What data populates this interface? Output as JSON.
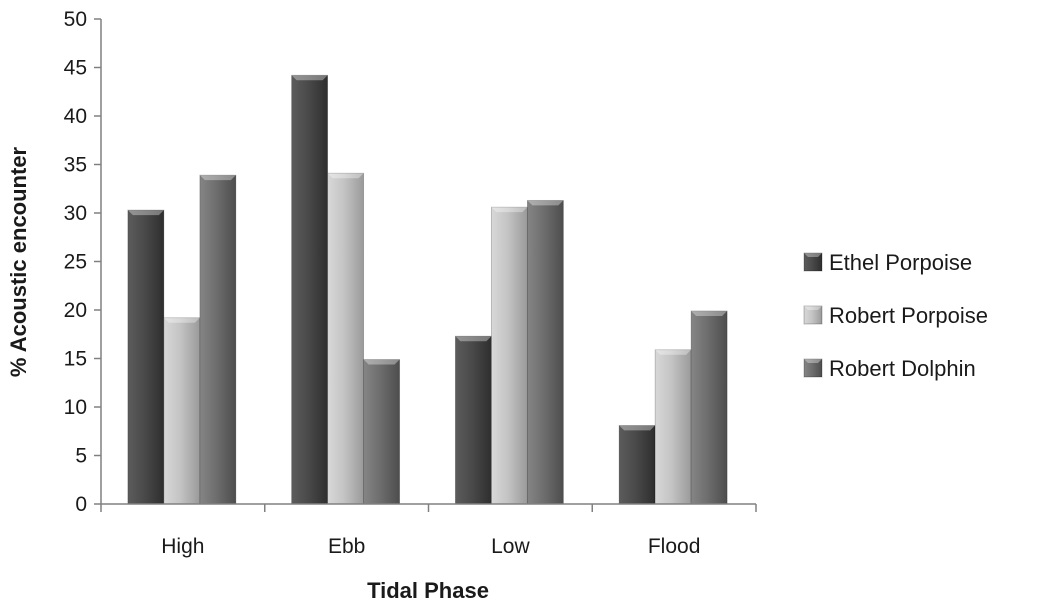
{
  "chart_data": {
    "type": "bar",
    "title": "",
    "xlabel": "Tidal Phase",
    "ylabel": "% Acoustic encounter",
    "ylim": [
      0,
      50
    ],
    "yticks": [
      0,
      5,
      10,
      15,
      20,
      25,
      30,
      35,
      40,
      45,
      50
    ],
    "categories": [
      "High",
      "Ebb",
      "Low",
      "Flood"
    ],
    "series": [
      {
        "name": "Ethel Porpoise",
        "values": [
          30.3,
          44.2,
          17.3,
          8.1
        ],
        "color": "#4a4a4a"
      },
      {
        "name": "Robert Porpoise",
        "values": [
          19.2,
          34.1,
          30.6,
          15.9
        ],
        "color": "#c4c4c4"
      },
      {
        "name": "Robert Dolphin",
        "values": [
          33.9,
          14.9,
          31.3,
          19.9
        ],
        "color": "#6e6e6e"
      }
    ],
    "legend_position": "right",
    "grid": false
  }
}
